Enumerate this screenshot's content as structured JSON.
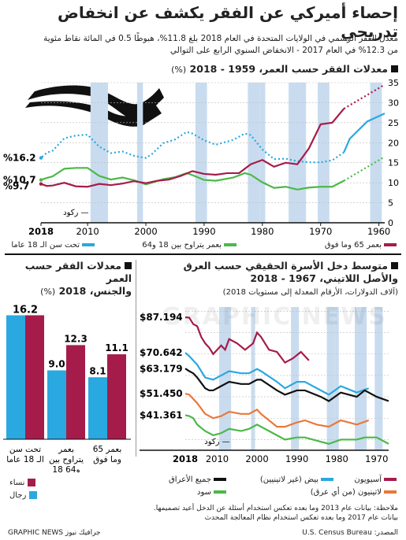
{
  "title": "إحصاء أميركي عن الفقر يكشف عن انخفاض تدريجي",
  "subtitle_line1": "معدل الفقر الرسمي في الولايات المتحدة في العام 2018 بلغ 11.8%، هبوطًا 0.5 في المائة نقاط مئوية",
  "subtitle_line2": "من 12.3% في العام 2017 - الانخفاض السنوي الرابع على التوالي",
  "section1": {
    "title": "معدلات الفقر حسب العمر، 1959 - 2018",
    "unit": "(%)"
  },
  "section2": {
    "title": "معدلات الفقر حسب العمر",
    "title2": "والجنس، 2018",
    "unit": "(%)"
  },
  "section3": {
    "title": "متوسط دخل الأسرة الحقيقي حسب العرق",
    "title2": "والأصل اللاتيني، 1967 - 2018",
    "sub": "(آلاف الدولارات، الأرقام المعدلة إلى مستويات 2018)"
  },
  "recession_label": "ركود —",
  "legend1": {
    "children": "تحت سن الـ 18 عاما",
    "adults": "بعمر يتراوح بين 18 و64",
    "seniors": "بعمر 65 وما فوق"
  },
  "legend2": {
    "women": "نساء",
    "men": "رجال"
  },
  "legend3": {
    "asian": "آسيويون",
    "white": "بيض (غير لاتينيين)",
    "all": "جميع الأعراق",
    "hispanic": "لاتينيون (من أي عرق)",
    "black": "سود"
  },
  "note": "ملاحظة: بيانات عام 2013 وما بعده تعكس استخدام أسئلة عن الدخل أعيد تصميمها. بيانات عام 2017 وما بعده تعكس استخدام نظام المعالجة المحدث",
  "source": "المصدر: U.S. Census Bureau",
  "credit": "GRAPHIC NEWS جرافيك نيوز",
  "watermark": "GRAPHIC NEWS",
  "colors": {
    "children": "#2aa8e0",
    "adults": "#4cb848",
    "seniors": "#a51c4a",
    "women": "#a51c4a",
    "men": "#2aa8e0",
    "all": "#111111",
    "asian": "#a51c4a",
    "white": "#2aa8e0",
    "hispanic": "#e8793a",
    "black": "#4cb848",
    "recession": "#c9dcef"
  },
  "chart_data": [
    {
      "type": "line",
      "title": "معدلات الفقر حسب العمر، 1959 - 2018",
      "ylim": [
        0,
        35
      ],
      "xlim": [
        2018,
        1959
      ],
      "x_ticks": [
        2018,
        2010,
        2000,
        1990,
        1980,
        1970,
        1960
      ],
      "y_ticks": [
        0,
        5,
        10,
        15,
        20,
        25,
        30,
        35
      ],
      "end_labels": [
        "%16.2",
        "%10.7",
        "%9.7"
      ],
      "recessions": [
        [
          1960,
          1961
        ],
        [
          1969,
          1970
        ],
        [
          1973,
          1975
        ],
        [
          1980,
          1980
        ],
        [
          1981,
          1982
        ],
        [
          1990,
          1991
        ],
        [
          2001,
          2001
        ],
        [
          2007,
          2009
        ]
      ],
      "series": [
        {
          "name": "تحت سن الـ 18 عاما",
          "key": "children",
          "x": [
            1959,
            1962,
            1965,
            1966,
            1968,
            1970,
            1972,
            1974,
            1976,
            1978,
            1980,
            1982,
            1983,
            1985,
            1988,
            1990,
            1992,
            1993,
            1995,
            1997,
            1999,
            2000,
            2002,
            2004,
            2006,
            2008,
            2010,
            2012,
            2014,
            2016,
            2017,
            2018
          ],
          "y": [
            27.3,
            25.3,
            21.0,
            17.6,
            15.6,
            15.1,
            15.1,
            15.4,
            16.0,
            15.9,
            18.3,
            21.9,
            22.3,
            20.7,
            19.5,
            20.6,
            22.3,
            22.7,
            20.8,
            19.9,
            17.1,
            16.2,
            16.7,
            17.8,
            17.4,
            19.0,
            22.0,
            21.8,
            21.1,
            18.0,
            17.5,
            16.2
          ],
          "dashed_to": 1966
        },
        {
          "name": "بعمر يتراوح بين 18 و64",
          "key": "adults",
          "x": [
            1966,
            1968,
            1970,
            1972,
            1974,
            1976,
            1978,
            1980,
            1982,
            1983,
            1985,
            1988,
            1990,
            1992,
            1993,
            1995,
            1997,
            1999,
            2000,
            2002,
            2004,
            2006,
            2008,
            2010,
            2012,
            2014,
            2016,
            2017,
            2018
          ],
          "y": [
            10.5,
            9.0,
            9.0,
            8.8,
            8.3,
            9.0,
            8.7,
            10.1,
            12.0,
            12.4,
            11.3,
            10.5,
            10.7,
            11.9,
            12.4,
            11.4,
            10.9,
            10.0,
            9.6,
            10.6,
            11.3,
            10.8,
            11.7,
            13.7,
            13.7,
            13.5,
            11.6,
            11.2,
            10.7
          ],
          "dashed_from": 1959
        },
        {
          "name": "بعمر 65 وما فوق",
          "key": "seniors",
          "x": [
            1966,
            1968,
            1970,
            1972,
            1974,
            1976,
            1978,
            1980,
            1982,
            1984,
            1986,
            1988,
            1990,
            1992,
            1994,
            1996,
            1998,
            2000,
            2002,
            2004,
            2006,
            2008,
            2010,
            2012,
            2014,
            2016,
            2017,
            2018
          ],
          "y": [
            28.5,
            25.0,
            24.6,
            18.6,
            14.6,
            15.0,
            14.0,
            15.7,
            14.6,
            12.4,
            12.4,
            12.0,
            12.2,
            12.9,
            11.7,
            10.8,
            10.5,
            9.9,
            10.4,
            9.8,
            9.4,
            9.7,
            9.0,
            9.1,
            10.0,
            9.3,
            9.2,
            9.7
          ],
          "dashed_from": 1959
        }
      ]
    },
    {
      "type": "bar",
      "title": "معدلات الفقر حسب العمر والجنس، 2018",
      "categories": [
        "تحت سن الـ 18 عاما",
        "بعمر يتراوح بين 18 و64",
        "بعمر 65 وما فوق"
      ],
      "ylim": [
        0,
        18
      ],
      "series": [
        {
          "name": "نساء",
          "key": "women",
          "values": [
            16.2,
            12.3,
            11.1
          ]
        },
        {
          "name": "رجال",
          "key": "men",
          "values": [
            16.2,
            9.0,
            8.1
          ]
        }
      ],
      "value_labels": [
        "16.2",
        "12.3",
        "9.0",
        "11.1",
        "8.1"
      ]
    },
    {
      "type": "line",
      "title": "متوسط دخل الأسرة الحقيقي حسب العرق والأصل اللاتيني، 1967 - 2018",
      "xlim": [
        2018,
        1967
      ],
      "ylim": [
        25,
        92
      ],
      "x_ticks": [
        2018,
        2010,
        2000,
        1990,
        1980,
        1970
      ],
      "value_labels": [
        "$87.194",
        "$70.642",
        "$63.179",
        "$51.450",
        "$41.361"
      ],
      "recessions": [
        [
          1969,
          1970
        ],
        [
          1973,
          1975
        ],
        [
          1980,
          1980
        ],
        [
          1981,
          1982
        ],
        [
          1990,
          1991
        ],
        [
          2001,
          2001
        ],
        [
          2007,
          2009
        ]
      ],
      "series": [
        {
          "name": "آسيويون",
          "key": "asian",
          "x": [
            1987,
            1989,
            1991,
            1993,
            1995,
            1997,
            1999,
            2000,
            2001,
            2003,
            2005,
            2007,
            2008,
            2009,
            2010,
            2011,
            2012,
            2013,
            2014,
            2015,
            2016,
            2017,
            2018
          ],
          "y": [
            67,
            71,
            68,
            66,
            71,
            72,
            78,
            80,
            75,
            72,
            75,
            77,
            72,
            74,
            72,
            70,
            73,
            75,
            78,
            83,
            84,
            87,
            87.2
          ]
        },
        {
          "name": "بيض (غير لاتينيين)",
          "key": "white",
          "x": [
            1972,
            1975,
            1979,
            1982,
            1985,
            1988,
            1990,
            1993,
            1995,
            1999,
            2000,
            2002,
            2004,
            2007,
            2009,
            2011,
            2013,
            2015,
            2016,
            2017,
            2018
          ],
          "y": [
            54,
            52,
            55,
            51,
            54,
            57,
            57,
            54,
            57,
            62,
            63,
            61,
            61,
            62,
            60,
            58,
            59,
            65,
            67,
            69,
            70.6
          ]
        },
        {
          "name": "جميع الأعراق",
          "key": "all",
          "x": [
            1967,
            1970,
            1973,
            1975,
            1979,
            1982,
            1984,
            1988,
            1990,
            1993,
            1995,
            1999,
            2000,
            2002,
            2004,
            2007,
            2009,
            2011,
            2012,
            2013,
            2015,
            2016,
            2017,
            2018
          ],
          "y": [
            48,
            50,
            53,
            50,
            52,
            48,
            50,
            53,
            53,
            51,
            53,
            58,
            58,
            56,
            56,
            57,
            55,
            53,
            53,
            54,
            59,
            61,
            62,
            63.2
          ]
        },
        {
          "name": "لاتينيون (من أي عرق)",
          "key": "hispanic",
          "x": [
            1972,
            1975,
            1979,
            1982,
            1985,
            1988,
            1990,
            1993,
            1995,
            1999,
            2000,
            2002,
            2004,
            2007,
            2009,
            2011,
            2013,
            2015,
            2016,
            2017,
            2018
          ],
          "y": [
            39,
            37,
            39,
            36,
            37,
            39,
            38,
            36,
            36,
            42,
            44,
            42,
            42,
            43,
            41,
            40,
            42,
            47,
            49,
            51,
            51.5
          ]
        },
        {
          "name": "سود",
          "key": "black",
          "x": [
            1967,
            1970,
            1973,
            1975,
            1979,
            1982,
            1984,
            1988,
            1990,
            1993,
            1995,
            1999,
            2000,
            2002,
            2004,
            2007,
            2009,
            2011,
            2013,
            2015,
            2016,
            2017,
            2018
          ],
          "y": [
            28,
            31,
            31,
            30,
            30,
            28,
            29,
            31,
            31,
            30,
            32,
            36,
            37,
            35,
            34,
            35,
            33,
            32,
            34,
            37,
            40,
            41,
            41.4
          ]
        }
      ]
    }
  ]
}
